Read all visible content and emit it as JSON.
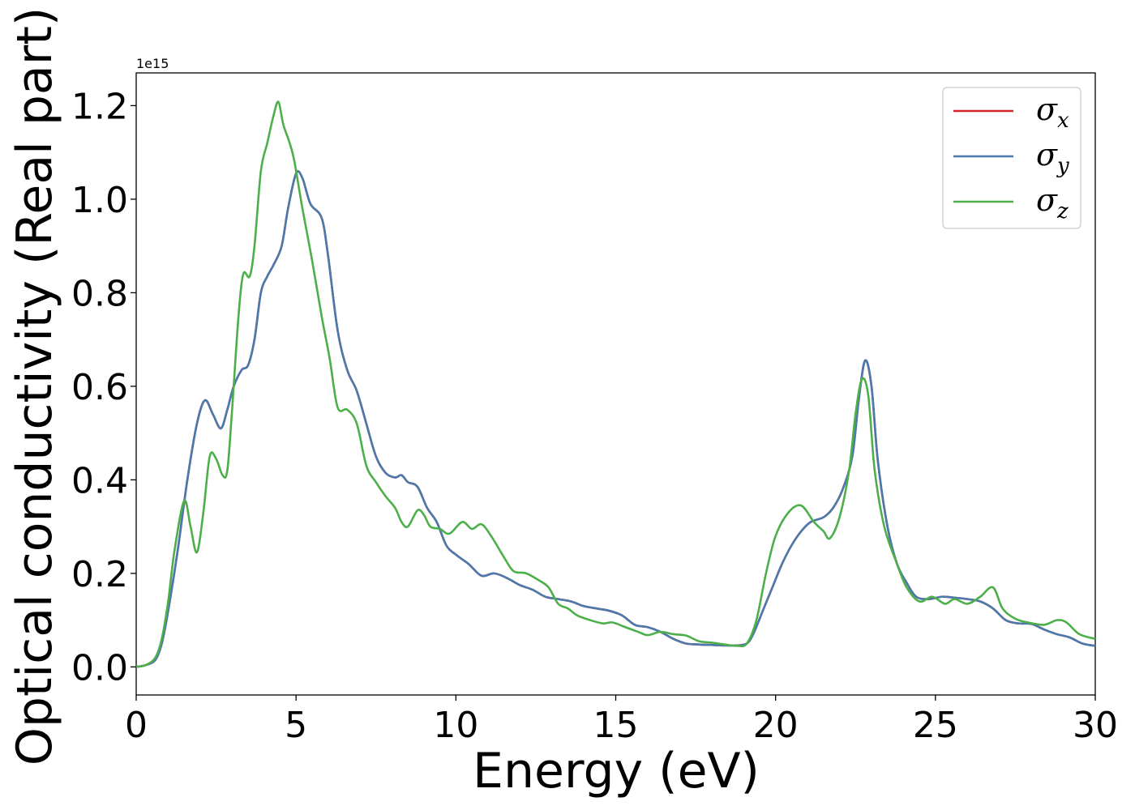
{
  "chart_data": {
    "type": "line",
    "title": "",
    "xlabel": "Energy (eV)",
    "ylabel": "Optical conductivity (Real part)",
    "y_offset_label": "1e15",
    "xlim": [
      0,
      30
    ],
    "ylim": [
      -0.06,
      1.27
    ],
    "x_ticks": [
      0,
      5,
      10,
      15,
      20,
      25,
      30
    ],
    "x_tick_labels": [
      "0",
      "5",
      "10",
      "15",
      "20",
      "25",
      "30"
    ],
    "y_ticks": [
      0.0,
      0.2,
      0.4,
      0.6,
      0.8,
      1.0,
      1.2
    ],
    "y_tick_labels": [
      "0.0",
      "0.2",
      "0.4",
      "0.6",
      "0.8",
      "1.0",
      "1.2"
    ],
    "grid": false,
    "legend_position": "top-right",
    "series": [
      {
        "name": "σx",
        "symbol": "σ",
        "subscript": "x",
        "color": "#d62728",
        "points": [
          [
            0,
            0
          ],
          [
            0.3,
            0.004
          ],
          [
            0.6,
            0.015
          ],
          [
            0.8,
            0.05
          ],
          [
            1.0,
            0.12
          ],
          [
            1.3,
            0.25
          ],
          [
            1.6,
            0.4
          ],
          [
            1.9,
            0.52
          ],
          [
            2.15,
            0.57
          ],
          [
            2.4,
            0.54
          ],
          [
            2.65,
            0.51
          ],
          [
            2.85,
            0.55
          ],
          [
            3.05,
            0.6
          ],
          [
            3.3,
            0.635
          ],
          [
            3.5,
            0.645
          ],
          [
            3.7,
            0.7
          ],
          [
            3.9,
            0.8
          ],
          [
            4.1,
            0.835
          ],
          [
            4.3,
            0.86
          ],
          [
            4.55,
            0.9
          ],
          [
            4.75,
            0.98
          ],
          [
            5.0,
            1.055
          ],
          [
            5.2,
            1.045
          ],
          [
            5.45,
            0.99
          ],
          [
            5.8,
            0.96
          ],
          [
            6.0,
            0.88
          ],
          [
            6.3,
            0.72
          ],
          [
            6.6,
            0.635
          ],
          [
            6.9,
            0.59
          ],
          [
            7.2,
            0.52
          ],
          [
            7.5,
            0.45
          ],
          [
            7.8,
            0.415
          ],
          [
            8.1,
            0.405
          ],
          [
            8.3,
            0.41
          ],
          [
            8.5,
            0.395
          ],
          [
            8.8,
            0.385
          ],
          [
            9.1,
            0.34
          ],
          [
            9.4,
            0.31
          ],
          [
            9.7,
            0.26
          ],
          [
            10.0,
            0.24
          ],
          [
            10.4,
            0.22
          ],
          [
            10.8,
            0.195
          ],
          [
            11.2,
            0.2
          ],
          [
            11.6,
            0.19
          ],
          [
            12.0,
            0.175
          ],
          [
            12.4,
            0.165
          ],
          [
            12.8,
            0.15
          ],
          [
            13.2,
            0.145
          ],
          [
            13.6,
            0.14
          ],
          [
            14.0,
            0.13
          ],
          [
            14.4,
            0.125
          ],
          [
            14.8,
            0.12
          ],
          [
            15.2,
            0.11
          ],
          [
            15.6,
            0.09
          ],
          [
            16.0,
            0.085
          ],
          [
            16.4,
            0.075
          ],
          [
            16.8,
            0.06
          ],
          [
            17.2,
            0.05
          ],
          [
            17.6,
            0.048
          ],
          [
            18.0,
            0.047
          ],
          [
            18.4,
            0.046
          ],
          [
            18.8,
            0.046
          ],
          [
            19.1,
            0.05
          ],
          [
            19.3,
            0.07
          ],
          [
            19.6,
            0.12
          ],
          [
            19.9,
            0.17
          ],
          [
            20.2,
            0.22
          ],
          [
            20.5,
            0.26
          ],
          [
            20.8,
            0.29
          ],
          [
            21.1,
            0.31
          ],
          [
            21.5,
            0.32
          ],
          [
            21.8,
            0.34
          ],
          [
            22.1,
            0.38
          ],
          [
            22.4,
            0.45
          ],
          [
            22.6,
            0.57
          ],
          [
            22.8,
            0.655
          ],
          [
            23.0,
            0.6
          ],
          [
            23.2,
            0.44
          ],
          [
            23.5,
            0.3
          ],
          [
            23.8,
            0.22
          ],
          [
            24.1,
            0.18
          ],
          [
            24.4,
            0.15
          ],
          [
            24.8,
            0.145
          ],
          [
            25.2,
            0.15
          ],
          [
            25.6,
            0.148
          ],
          [
            26.0,
            0.145
          ],
          [
            26.4,
            0.14
          ],
          [
            26.8,
            0.125
          ],
          [
            27.2,
            0.1
          ],
          [
            27.6,
            0.093
          ],
          [
            28.0,
            0.092
          ],
          [
            28.4,
            0.08
          ],
          [
            28.8,
            0.07
          ],
          [
            29.2,
            0.063
          ],
          [
            29.6,
            0.05
          ],
          [
            30.0,
            0.045
          ]
        ]
      },
      {
        "name": "σy",
        "symbol": "σ",
        "subscript": "y",
        "color": "#4a7aad",
        "points": [
          [
            0,
            0
          ],
          [
            0.3,
            0.004
          ],
          [
            0.6,
            0.015
          ],
          [
            0.8,
            0.05
          ],
          [
            1.0,
            0.12
          ],
          [
            1.3,
            0.25
          ],
          [
            1.6,
            0.4
          ],
          [
            1.9,
            0.52
          ],
          [
            2.15,
            0.57
          ],
          [
            2.4,
            0.54
          ],
          [
            2.65,
            0.51
          ],
          [
            2.85,
            0.55
          ],
          [
            3.05,
            0.6
          ],
          [
            3.3,
            0.635
          ],
          [
            3.5,
            0.645
          ],
          [
            3.7,
            0.7
          ],
          [
            3.9,
            0.8
          ],
          [
            4.1,
            0.835
          ],
          [
            4.3,
            0.86
          ],
          [
            4.55,
            0.9
          ],
          [
            4.75,
            0.98
          ],
          [
            5.0,
            1.055
          ],
          [
            5.2,
            1.045
          ],
          [
            5.45,
            0.99
          ],
          [
            5.8,
            0.96
          ],
          [
            6.0,
            0.88
          ],
          [
            6.3,
            0.72
          ],
          [
            6.6,
            0.635
          ],
          [
            6.9,
            0.59
          ],
          [
            7.2,
            0.52
          ],
          [
            7.5,
            0.45
          ],
          [
            7.8,
            0.415
          ],
          [
            8.1,
            0.405
          ],
          [
            8.3,
            0.41
          ],
          [
            8.5,
            0.395
          ],
          [
            8.8,
            0.385
          ],
          [
            9.1,
            0.34
          ],
          [
            9.4,
            0.31
          ],
          [
            9.7,
            0.26
          ],
          [
            10.0,
            0.24
          ],
          [
            10.4,
            0.22
          ],
          [
            10.8,
            0.195
          ],
          [
            11.2,
            0.2
          ],
          [
            11.6,
            0.19
          ],
          [
            12.0,
            0.175
          ],
          [
            12.4,
            0.165
          ],
          [
            12.8,
            0.15
          ],
          [
            13.2,
            0.145
          ],
          [
            13.6,
            0.14
          ],
          [
            14.0,
            0.13
          ],
          [
            14.4,
            0.125
          ],
          [
            14.8,
            0.12
          ],
          [
            15.2,
            0.11
          ],
          [
            15.6,
            0.09
          ],
          [
            16.0,
            0.085
          ],
          [
            16.4,
            0.075
          ],
          [
            16.8,
            0.06
          ],
          [
            17.2,
            0.05
          ],
          [
            17.6,
            0.048
          ],
          [
            18.0,
            0.047
          ],
          [
            18.4,
            0.046
          ],
          [
            18.8,
            0.046
          ],
          [
            19.1,
            0.05
          ],
          [
            19.3,
            0.07
          ],
          [
            19.6,
            0.12
          ],
          [
            19.9,
            0.17
          ],
          [
            20.2,
            0.22
          ],
          [
            20.5,
            0.26
          ],
          [
            20.8,
            0.29
          ],
          [
            21.1,
            0.31
          ],
          [
            21.5,
            0.32
          ],
          [
            21.8,
            0.34
          ],
          [
            22.1,
            0.38
          ],
          [
            22.4,
            0.45
          ],
          [
            22.6,
            0.57
          ],
          [
            22.8,
            0.655
          ],
          [
            23.0,
            0.6
          ],
          [
            23.2,
            0.44
          ],
          [
            23.5,
            0.3
          ],
          [
            23.8,
            0.22
          ],
          [
            24.1,
            0.18
          ],
          [
            24.4,
            0.15
          ],
          [
            24.8,
            0.145
          ],
          [
            25.2,
            0.15
          ],
          [
            25.6,
            0.148
          ],
          [
            26.0,
            0.145
          ],
          [
            26.4,
            0.14
          ],
          [
            26.8,
            0.125
          ],
          [
            27.2,
            0.1
          ],
          [
            27.6,
            0.093
          ],
          [
            28.0,
            0.092
          ],
          [
            28.4,
            0.08
          ],
          [
            28.8,
            0.07
          ],
          [
            29.2,
            0.063
          ],
          [
            29.6,
            0.05
          ],
          [
            30.0,
            0.045
          ]
        ]
      },
      {
        "name": "σz",
        "symbol": "σ",
        "subscript": "z",
        "color": "#4daf4a",
        "points": [
          [
            0,
            0
          ],
          [
            0.3,
            0.004
          ],
          [
            0.6,
            0.02
          ],
          [
            0.8,
            0.06
          ],
          [
            1.0,
            0.14
          ],
          [
            1.2,
            0.25
          ],
          [
            1.5,
            0.355
          ],
          [
            1.7,
            0.3
          ],
          [
            1.9,
            0.245
          ],
          [
            2.1,
            0.33
          ],
          [
            2.3,
            0.45
          ],
          [
            2.5,
            0.445
          ],
          [
            2.7,
            0.41
          ],
          [
            2.85,
            0.42
          ],
          [
            3.0,
            0.55
          ],
          [
            3.2,
            0.75
          ],
          [
            3.35,
            0.84
          ],
          [
            3.55,
            0.835
          ],
          [
            3.7,
            0.9
          ],
          [
            3.9,
            1.06
          ],
          [
            4.1,
            1.12
          ],
          [
            4.3,
            1.18
          ],
          [
            4.45,
            1.208
          ],
          [
            4.6,
            1.16
          ],
          [
            4.8,
            1.12
          ],
          [
            4.95,
            1.08
          ],
          [
            5.2,
            0.98
          ],
          [
            5.5,
            0.87
          ],
          [
            5.8,
            0.75
          ],
          [
            6.05,
            0.66
          ],
          [
            6.3,
            0.555
          ],
          [
            6.6,
            0.55
          ],
          [
            6.9,
            0.52
          ],
          [
            7.2,
            0.43
          ],
          [
            7.5,
            0.395
          ],
          [
            7.8,
            0.365
          ],
          [
            8.1,
            0.34
          ],
          [
            8.3,
            0.31
          ],
          [
            8.5,
            0.3
          ],
          [
            8.8,
            0.335
          ],
          [
            9.0,
            0.325
          ],
          [
            9.2,
            0.3
          ],
          [
            9.5,
            0.295
          ],
          [
            9.8,
            0.285
          ],
          [
            10.2,
            0.31
          ],
          [
            10.5,
            0.295
          ],
          [
            10.8,
            0.305
          ],
          [
            11.1,
            0.28
          ],
          [
            11.5,
            0.235
          ],
          [
            11.8,
            0.205
          ],
          [
            12.2,
            0.2
          ],
          [
            12.6,
            0.185
          ],
          [
            12.9,
            0.17
          ],
          [
            13.2,
            0.135
          ],
          [
            13.5,
            0.125
          ],
          [
            13.8,
            0.11
          ],
          [
            14.2,
            0.1
          ],
          [
            14.6,
            0.093
          ],
          [
            14.9,
            0.095
          ],
          [
            15.3,
            0.085
          ],
          [
            15.7,
            0.075
          ],
          [
            16.0,
            0.068
          ],
          [
            16.4,
            0.075
          ],
          [
            16.8,
            0.07
          ],
          [
            17.2,
            0.067
          ],
          [
            17.6,
            0.055
          ],
          [
            18.0,
            0.052
          ],
          [
            18.4,
            0.048
          ],
          [
            18.8,
            0.045
          ],
          [
            19.1,
            0.05
          ],
          [
            19.4,
            0.1
          ],
          [
            19.7,
            0.2
          ],
          [
            20.0,
            0.28
          ],
          [
            20.4,
            0.33
          ],
          [
            20.8,
            0.345
          ],
          [
            21.2,
            0.31
          ],
          [
            21.5,
            0.29
          ],
          [
            21.7,
            0.275
          ],
          [
            22.0,
            0.32
          ],
          [
            22.3,
            0.42
          ],
          [
            22.5,
            0.54
          ],
          [
            22.7,
            0.615
          ],
          [
            22.9,
            0.58
          ],
          [
            23.1,
            0.42
          ],
          [
            23.4,
            0.3
          ],
          [
            23.8,
            0.22
          ],
          [
            24.1,
            0.17
          ],
          [
            24.5,
            0.14
          ],
          [
            24.9,
            0.15
          ],
          [
            25.3,
            0.135
          ],
          [
            25.6,
            0.145
          ],
          [
            26.0,
            0.135
          ],
          [
            26.4,
            0.15
          ],
          [
            26.8,
            0.17
          ],
          [
            27.1,
            0.125
          ],
          [
            27.5,
            0.103
          ],
          [
            27.9,
            0.095
          ],
          [
            28.4,
            0.09
          ],
          [
            28.8,
            0.1
          ],
          [
            29.1,
            0.095
          ],
          [
            29.5,
            0.07
          ],
          [
            30.0,
            0.06
          ]
        ]
      }
    ]
  }
}
